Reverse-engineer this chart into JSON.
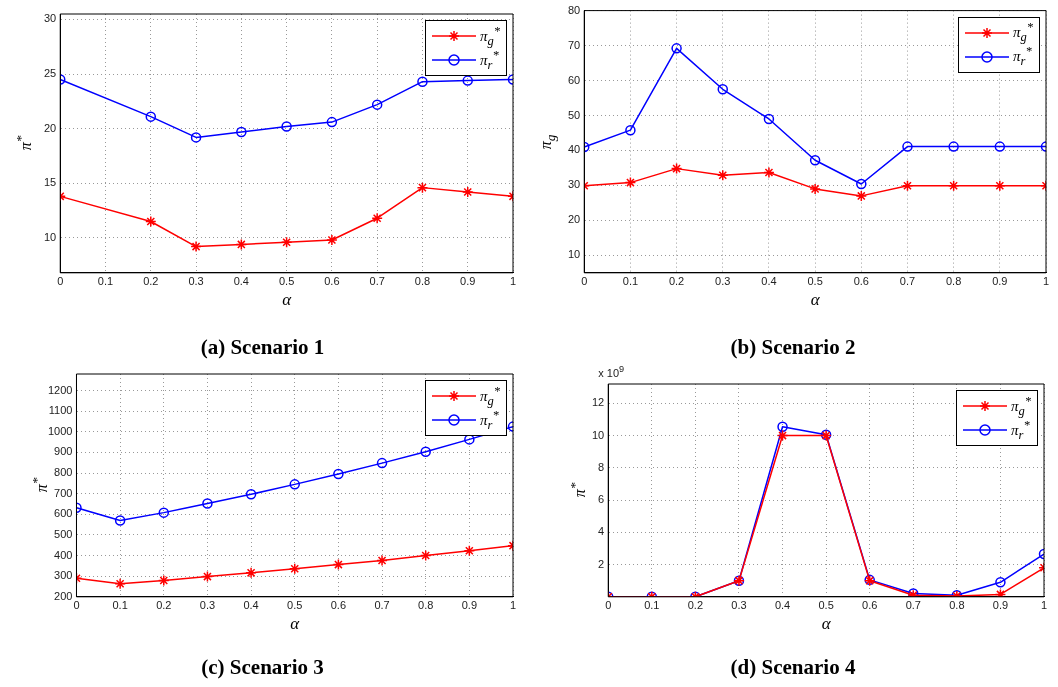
{
  "chart_data": [
    {
      "type": "line",
      "title": "(a) Scenario 1",
      "xlabel": "α",
      "ylabel": "π$^{*}$",
      "x": [
        0,
        0.2,
        0.3,
        0.4,
        0.5,
        0.6,
        0.7,
        0.8,
        0.9,
        1
      ],
      "xlim": [
        0,
        1
      ],
      "xticks": [
        0,
        0.1,
        0.2,
        0.3,
        0.4,
        0.5,
        0.6,
        0.7,
        0.8,
        0.9,
        1
      ],
      "ylim": [
        6.8,
        30.5
      ],
      "yticks": [
        10,
        15,
        20,
        25,
        30
      ],
      "grid": true,
      "legend": "top right",
      "line_style": "solid",
      "series": [
        {
          "name": "π$_{g}$$^{*}$",
          "color": "#ff0000",
          "marker": "cross",
          "values": [
            13.8,
            11.5,
            9.2,
            9.4,
            9.6,
            9.8,
            11.8,
            14.6,
            14.2,
            13.8
          ]
        },
        {
          "name": "π$_{r}$$^{*}$",
          "color": "#0000ff",
          "marker": "circle",
          "values": [
            24.5,
            21.1,
            19.2,
            19.7,
            20.2,
            20.6,
            22.2,
            24.3,
            24.4,
            24.5
          ]
        }
      ]
    },
    {
      "type": "line",
      "title": "(b) Scenario 2",
      "xlabel": "α",
      "ylabel": "π$_{g}$",
      "x": [
        0,
        0.1,
        0.2,
        0.3,
        0.4,
        0.5,
        0.6,
        0.7,
        0.8,
        0.9,
        1
      ],
      "xlim": [
        0,
        1
      ],
      "xticks": [
        0,
        0.1,
        0.2,
        0.3,
        0.4,
        0.5,
        0.6,
        0.7,
        0.8,
        0.9,
        1
      ],
      "ylim": [
        5,
        80
      ],
      "yticks": [
        10,
        20,
        30,
        40,
        50,
        60,
        70,
        80
      ],
      "grid": true,
      "legend": "top right",
      "line_style": "solid",
      "series": [
        {
          "name": "π$_{g}$$^{*}$",
          "color": "#ff0000",
          "marker": "cross",
          "values": [
            29.9,
            30.8,
            34.8,
            32.9,
            33.7,
            29,
            27,
            29.9,
            29.9,
            29.9,
            29.9
          ]
        },
        {
          "name": "π$_{r}$$^{*}$",
          "color": "#0000ff",
          "marker": "circle",
          "values": [
            41,
            45.8,
            69.2,
            57.5,
            49,
            37.2,
            30.4,
            41.1,
            41.1,
            41.1,
            41.1
          ]
        }
      ]
    },
    {
      "type": "line",
      "title": "(c) Scenario 3",
      "xlabel": "α",
      "ylabel": "π$^{*}$",
      "x": [
        0,
        0.1,
        0.2,
        0.3,
        0.4,
        0.5,
        0.6,
        0.7,
        0.8,
        0.9,
        1
      ],
      "xlim": [
        0,
        1
      ],
      "xticks": [
        0,
        0.1,
        0.2,
        0.3,
        0.4,
        0.5,
        0.6,
        0.7,
        0.8,
        0.9,
        1
      ],
      "ylim": [
        200,
        1280
      ],
      "yticks": [
        200,
        300,
        400,
        500,
        600,
        700,
        800,
        900,
        1000,
        1100,
        1200
      ],
      "grid": true,
      "legend": "top right",
      "line_style": "solid",
      "series": [
        {
          "name": "π$_{g}$$^{*}$",
          "color": "#ff0000",
          "marker": "cross",
          "values": [
            290,
            263,
            279,
            298,
            316,
            336,
            356,
            376,
            400,
            423,
            448
          ]
        },
        {
          "name": "π$_{r}$$^{*}$",
          "color": "#0000ff",
          "marker": "circle",
          "values": [
            632,
            570,
            608,
            652,
            697,
            745,
            795,
            848,
            903,
            963,
            1025
          ]
        }
      ]
    },
    {
      "type": "line",
      "title": "(d) Scenario 4",
      "xlabel": "α",
      "ylabel": "π$^{*}$",
      "annotations": [
        "x 10$^{9}$"
      ],
      "x": [
        0,
        0.1,
        0.2,
        0.3,
        0.4,
        0.5,
        0.6,
        0.7,
        0.8,
        0.9,
        1
      ],
      "xlim": [
        0,
        1
      ],
      "xticks": [
        0,
        0.1,
        0.2,
        0.3,
        0.4,
        0.5,
        0.6,
        0.7,
        0.8,
        0.9,
        1
      ],
      "ylim": [
        0,
        13.2
      ],
      "yticks": [
        2,
        4,
        6,
        8,
        10,
        12
      ],
      "grid": true,
      "legend": "top right",
      "line_style": "solid",
      "series": [
        {
          "name": "π$_{g}$$^{*}$",
          "color": "#ff0000",
          "marker": "cross",
          "values": [
            0,
            0,
            0,
            1,
            10,
            10,
            1,
            0.1,
            0.05,
            0.15,
            1.8
          ]
        },
        {
          "name": "π$_{r}$$^{*}$",
          "color": "#0000ff",
          "marker": "circle",
          "values": [
            0,
            0,
            0,
            1,
            10.55,
            10.05,
            1.05,
            0.2,
            0.1,
            0.9,
            2.65
          ]
        }
      ]
    }
  ]
}
